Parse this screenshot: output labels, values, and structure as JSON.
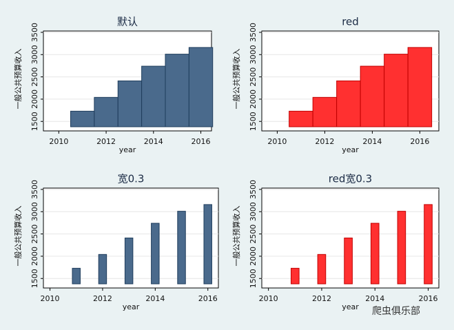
{
  "chart_data": [
    {
      "type": "bar",
      "title": "默认",
      "x": [
        2011,
        2012,
        2013,
        2014,
        2015,
        2016
      ],
      "values": [
        1730,
        2040,
        2410,
        2740,
        3010,
        3160
      ],
      "color": "#4a6a8c",
      "edge": "#1f3d5c",
      "bar_width": 1,
      "xlim": [
        2009.35,
        2016.45
      ],
      "ylim": [
        1380,
        3530
      ],
      "xticks": [
        2010,
        2012,
        2014,
        2016
      ],
      "yticks": [
        1500,
        2000,
        2500,
        3000,
        3500
      ],
      "xlabel": "year",
      "ylabel": "一般公共预算收入",
      "grid": true
    },
    {
      "type": "bar",
      "title": "red",
      "x": [
        2011,
        2012,
        2013,
        2014,
        2015,
        2016
      ],
      "values": [
        1730,
        2040,
        2410,
        2740,
        3010,
        3160
      ],
      "color": "#ff3030",
      "edge": "#c00000",
      "bar_width": 1,
      "xlim": [
        2009.35,
        2016.8
      ],
      "ylim": [
        1380,
        3530
      ],
      "xticks": [
        2010,
        2012,
        2014,
        2016
      ],
      "yticks": [
        1500,
        2000,
        2500,
        3000,
        3500
      ],
      "xlabel": "year",
      "ylabel": "一般公共预算收入",
      "grid": true
    },
    {
      "type": "bar",
      "title": "宽0.3",
      "x": [
        2011,
        2012,
        2013,
        2014,
        2015,
        2016
      ],
      "values": [
        1730,
        2040,
        2410,
        2740,
        3010,
        3160
      ],
      "color": "#4a6a8c",
      "edge": "#1f3d5c",
      "bar_width": 0.3,
      "xlim": [
        2009.75,
        2016.4
      ],
      "ylim": [
        1380,
        3530
      ],
      "xticks": [
        2010,
        2012,
        2014,
        2016
      ],
      "yticks": [
        1500,
        2000,
        2500,
        3000,
        3500
      ],
      "xlabel": "year",
      "ylabel": "一般公共预算收入",
      "grid": true
    },
    {
      "type": "bar",
      "title": "red宽0.3",
      "x": [
        2011,
        2012,
        2013,
        2014,
        2015,
        2016
      ],
      "values": [
        1730,
        2040,
        2410,
        2740,
        3010,
        3160
      ],
      "color": "#ff3030",
      "edge": "#c00000",
      "bar_width": 0.3,
      "xlim": [
        2009.75,
        2016.4
      ],
      "ylim": [
        1380,
        3530
      ],
      "xticks": [
        2010,
        2012,
        2014,
        2016
      ],
      "yticks": [
        1500,
        2000,
        2500,
        3000,
        3500
      ],
      "xlabel": "year",
      "ylabel": "一般公共预算收入",
      "grid": true
    }
  ],
  "watermark": "爬虫俱乐部"
}
